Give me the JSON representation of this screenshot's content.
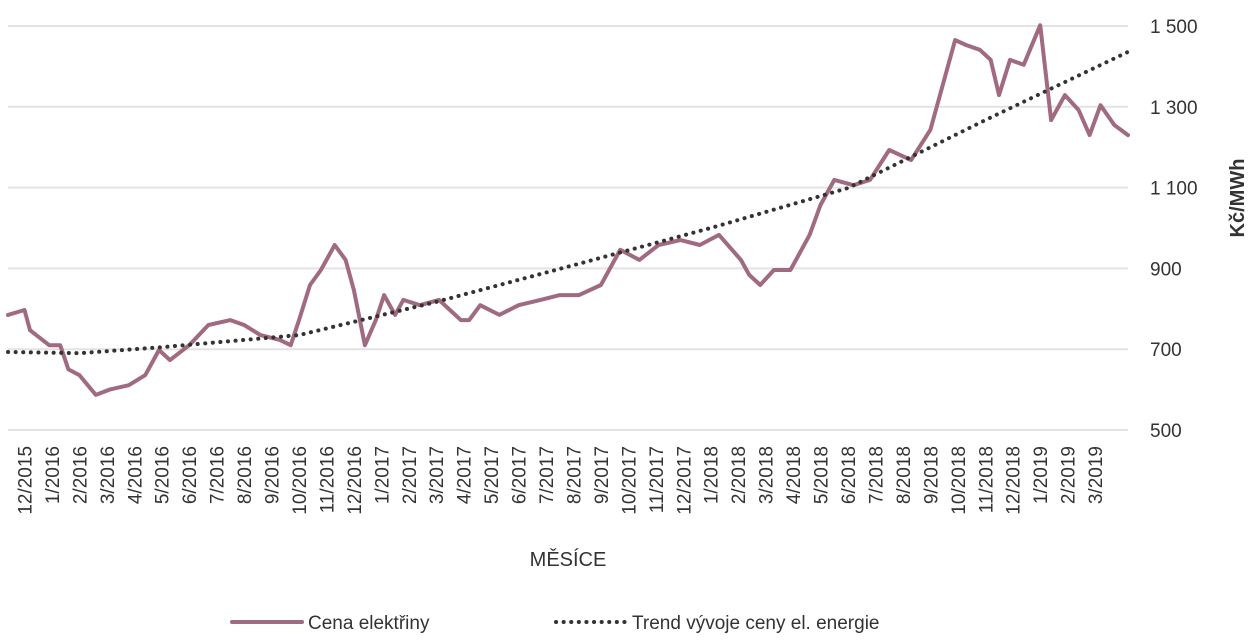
{
  "chart_data": {
    "type": "line",
    "xlabel": "MĚSÍCE",
    "ylabel": "Kč/MWh",
    "xlim": [
      -0.6,
      40.2
    ],
    "xticks": [
      {
        "value": 0,
        "label": "12/2015"
      },
      {
        "value": 1,
        "label": "1/2016"
      },
      {
        "value": 2,
        "label": "2/2016"
      },
      {
        "value": 3,
        "label": "3/2016"
      },
      {
        "value": 4,
        "label": "4/2016"
      },
      {
        "value": 5,
        "label": "5/2016"
      },
      {
        "value": 6,
        "label": "6/2016"
      },
      {
        "value": 7,
        "label": "7/2016"
      },
      {
        "value": 8,
        "label": "8/2016"
      },
      {
        "value": 9,
        "label": "9/2016"
      },
      {
        "value": 10,
        "label": "10/2016"
      },
      {
        "value": 11,
        "label": "11/2016"
      },
      {
        "value": 12,
        "label": "12/2016"
      },
      {
        "value": 13,
        "label": "1/2017"
      },
      {
        "value": 14,
        "label": "2/2017"
      },
      {
        "value": 15,
        "label": "3/2017"
      },
      {
        "value": 16,
        "label": "4/2017"
      },
      {
        "value": 17,
        "label": "5/2017"
      },
      {
        "value": 18,
        "label": "6/2017"
      },
      {
        "value": 19,
        "label": "7/2017"
      },
      {
        "value": 20,
        "label": "8/2017"
      },
      {
        "value": 21,
        "label": "9/2017"
      },
      {
        "value": 22,
        "label": "10/2017"
      },
      {
        "value": 23,
        "label": "11/2017"
      },
      {
        "value": 24,
        "label": "12/2017"
      },
      {
        "value": 25,
        "label": "1/2018"
      },
      {
        "value": 26,
        "label": "2/2018"
      },
      {
        "value": 27,
        "label": "3/2018"
      },
      {
        "value": 28,
        "label": "4/2018"
      },
      {
        "value": 29,
        "label": "5/2018"
      },
      {
        "value": 30,
        "label": "6/2018"
      },
      {
        "value": 31,
        "label": "7/2018"
      },
      {
        "value": 32,
        "label": "8/2018"
      },
      {
        "value": 33,
        "label": "9/2018"
      },
      {
        "value": 34,
        "label": "10/2018"
      },
      {
        "value": 35,
        "label": "11/2018"
      },
      {
        "value": 36,
        "label": "12/2018"
      },
      {
        "value": 37,
        "label": "1/2019"
      },
      {
        "value": 38,
        "label": "2/2019"
      },
      {
        "value": 39,
        "label": "3/2019"
      }
    ],
    "ylim": [
      500,
      1500
    ],
    "yticks": [
      500,
      700,
      900,
      {
        "value": 1100,
        "label": "1 100"
      },
      {
        "value": 1300,
        "label": "1 300"
      },
      {
        "value": 1500,
        "label": "1 500"
      }
    ],
    "grid": true,
    "legend": "bottom",
    "series": [
      {
        "name": "Cena elektřiny",
        "color": "#a06a80",
        "style": "solid",
        "x": [
          -0.6,
          0,
          0.2,
          0.9,
          1.3,
          1.6,
          2.0,
          2.6,
          3.1,
          3.8,
          4.4,
          4.9,
          5.3,
          6.0,
          6.7,
          7.5,
          8.0,
          8.6,
          9.3,
          9.7,
          10.0,
          10.4,
          10.8,
          11.3,
          11.7,
          12.0,
          12.4,
          12.8,
          13.1,
          13.5,
          13.8,
          14.4,
          15.1,
          15.9,
          16.2,
          16.6,
          17.3,
          18.0,
          18.8,
          19.5,
          20.2,
          21.0,
          21.7,
          22.4,
          23.1,
          23.9,
          24.6,
          25.3,
          26.1,
          26.4,
          26.8,
          27.3,
          27.9,
          28.2,
          28.6,
          29.0,
          29.5,
          30.2,
          30.8,
          31.5,
          32.3,
          33.0,
          33.5,
          33.9,
          34.3,
          34.8,
          35.2,
          35.5,
          35.9,
          36.4,
          37.0,
          37.4,
          37.9,
          38.4,
          38.8,
          39.2,
          39.7,
          40.2
        ],
        "values": [
          785,
          797,
          747,
          710,
          710,
          650,
          636,
          587,
          600,
          611,
          636,
          698,
          673,
          710,
          760,
          772,
          760,
          735,
          723,
          710,
          772,
          859,
          896,
          958,
          921,
          846,
          710,
          772,
          834,
          785,
          822,
          809,
          822,
          772,
          772,
          809,
          785,
          809,
          822,
          834,
          834,
          859,
          946,
          921,
          958,
          970,
          958,
          983,
          921,
          884,
          859,
          896,
          896,
          933,
          983,
          1057,
          1119,
          1106,
          1119,
          1193,
          1168,
          1243,
          1366,
          1465,
          1453,
          1441,
          1416,
          1329,
          1416,
          1404,
          1502,
          1267,
          1329,
          1292,
          1230,
          1304,
          1255,
          1230
        ]
      },
      {
        "name": "Trend vývoje ceny el. energie",
        "color": "#333333",
        "style": "dotted",
        "x": [
          -0.6,
          2,
          5,
          10,
          15,
          20,
          25,
          30,
          35,
          40.2
        ],
        "values": [
          693,
          690,
          705,
          735,
          817,
          908,
          1000,
          1099,
          1267,
          1436
        ]
      }
    ]
  }
}
